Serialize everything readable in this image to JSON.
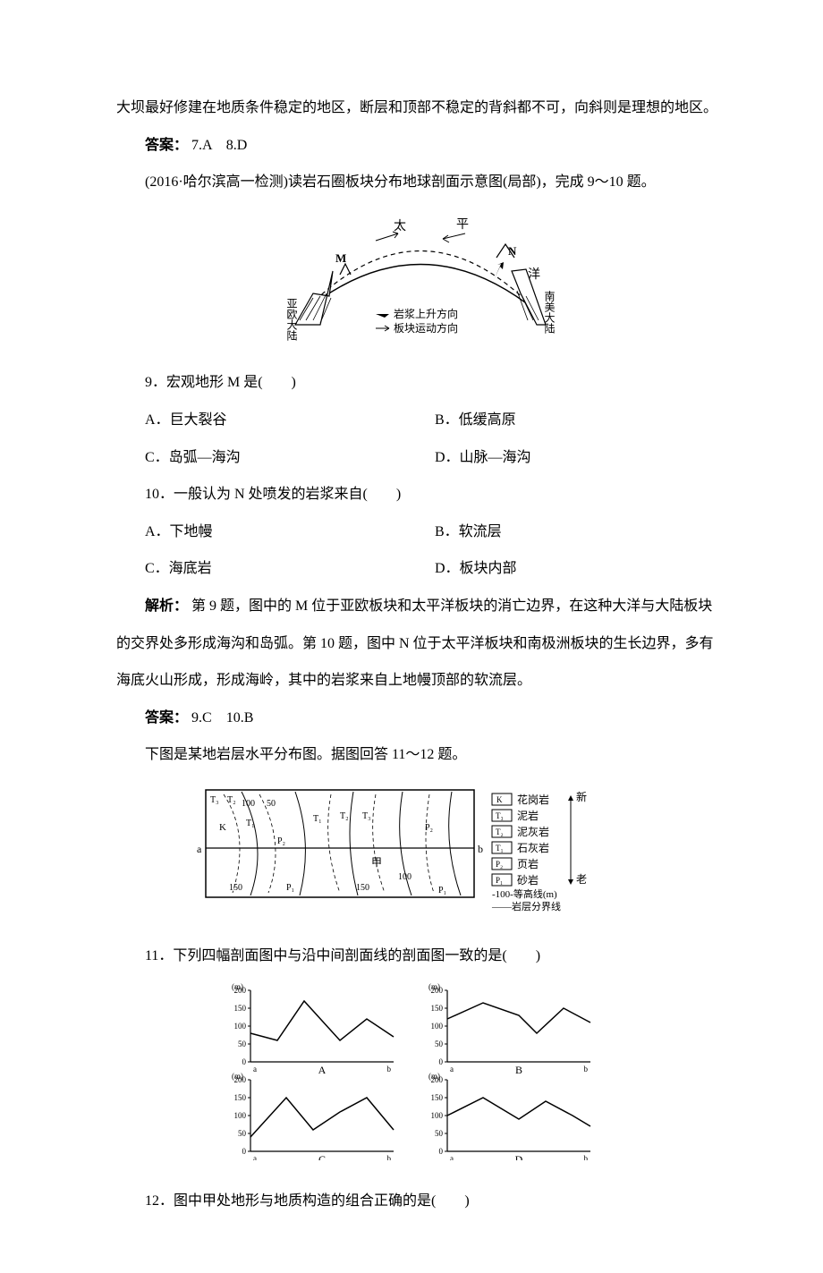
{
  "intro_para": "大坝最好修建在地质条件稳定的地区，断层和顶部不稳定的背斜都不可，向斜则是理想的地区。",
  "answer_7_8_label": "答案：",
  "answer_7_8": "7.A　8.D",
  "passage_9_10": "(2016·哈尔滨高一检测)读岩石圈板块分布地球剖面示意图(局部)，完成 9～10 题。",
  "fig1": {
    "labels": {
      "tai": "太",
      "ping": "平",
      "yang": "洋",
      "M": "M",
      "N": "N",
      "eurasia": "亚欧大陆",
      "samerica": "南美大陆",
      "arrow_filled": "岩浆上升方向",
      "arrow_open": "板块运动方向"
    },
    "colors": {
      "stroke": "#000000",
      "fill_hatch": "#000000",
      "bg": "#ffffff"
    }
  },
  "q9": {
    "stem": "9．宏观地形 M 是(　　)",
    "A": "A．巨大裂谷",
    "B": "B．低缓高原",
    "C": "C．岛弧—海沟",
    "D": "D．山脉—海沟"
  },
  "q10": {
    "stem": "10．一般认为 N 处喷发的岩浆来自(　　)",
    "A": "A．下地幔",
    "B": "B．软流层",
    "C": "C．海底岩",
    "D": "D．板块内部"
  },
  "explain_9_10_label": "解析：",
  "explain_9_10": "第 9 题，图中的 M 位于亚欧板块和太平洋板块的消亡边界，在这种大洋与大陆板块的交界处多形成海沟和岛弧。第 10 题，图中 N 位于太平洋板块和南极洲板块的生长边界，多有海底火山形成，形成海岭，其中的岩浆来自上地幔顶部的软流层。",
  "answer_9_10_label": "答案：",
  "answer_9_10": "9.C　10.B",
  "passage_11_12": "下图是某地岩层水平分布图。据图回答 11～12 题。",
  "fig2": {
    "legend": [
      {
        "sym": "K",
        "label": "花岗岩"
      },
      {
        "sym": "T₃",
        "label": "泥岩"
      },
      {
        "sym": "T₂",
        "label": "泥灰岩"
      },
      {
        "sym": "T₁",
        "label": "石灰岩"
      },
      {
        "sym": "P₂",
        "label": "页岩"
      },
      {
        "sym": "P₁",
        "label": "砂岩"
      }
    ],
    "age_new": "新",
    "age_old": "老",
    "contour_label": "-100-等高线(m)",
    "boundary_label": "——岩层分界线",
    "contours": [
      "100",
      "50",
      "150",
      "100",
      "150"
    ],
    "marks": [
      "T₃",
      "T₂",
      "T₁",
      "P₂",
      "P₁",
      "K",
      "甲",
      "a",
      "b"
    ],
    "colors": {
      "stroke": "#000000",
      "bg": "#ffffff"
    }
  },
  "q11": {
    "stem": "11．下列四幅剖面图中与沿中间剖面线的剖面图一致的是(　　)"
  },
  "fig3": {
    "y_label": "(m)",
    "y_ticks": [
      0,
      50,
      100,
      150,
      200
    ],
    "x_left": "a",
    "x_right": "b",
    "panels": [
      {
        "name": "A",
        "points": [
          [
            0,
            80
          ],
          [
            30,
            60
          ],
          [
            60,
            170
          ],
          [
            100,
            60
          ],
          [
            130,
            120
          ],
          [
            160,
            70
          ]
        ]
      },
      {
        "name": "B",
        "points": [
          [
            0,
            120
          ],
          [
            40,
            165
          ],
          [
            80,
            130
          ],
          [
            100,
            80
          ],
          [
            130,
            150
          ],
          [
            160,
            110
          ]
        ]
      },
      {
        "name": "C",
        "points": [
          [
            0,
            40
          ],
          [
            40,
            150
          ],
          [
            70,
            60
          ],
          [
            100,
            110
          ],
          [
            130,
            150
          ],
          [
            160,
            60
          ]
        ]
      },
      {
        "name": "D",
        "points": [
          [
            0,
            100
          ],
          [
            40,
            150
          ],
          [
            80,
            90
          ],
          [
            110,
            140
          ],
          [
            140,
            100
          ],
          [
            160,
            70
          ]
        ]
      }
    ],
    "colors": {
      "stroke": "#000000",
      "bg": "#ffffff"
    },
    "axis_fontsize": 9
  },
  "q12": {
    "stem": "12．图中甲处地形与地质构造的组合正确的是(　　)"
  }
}
